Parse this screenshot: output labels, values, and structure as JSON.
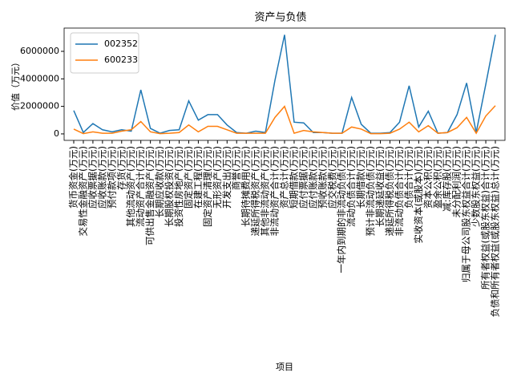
{
  "chart_data": {
    "type": "line",
    "title": "资产与负债",
    "xlabel": "项目",
    "ylabel": "价值（万元）",
    "categories": [
      "货币资金(万元)",
      "交易性金融资产(万元)",
      "应收票据(万元)",
      "应收账款(万元)",
      "预付款项(万元)",
      "存货(万元)",
      "其他流动资产(万元)",
      "流动资产合计(万元)",
      "可供出售金融资产(万元)",
      "长期应收款(万元)",
      "长期股权投资(万元)",
      "投资性房地产(万元)",
      "固定资产(万元)",
      "在建工程(万元)",
      "固定资产清理(万元)",
      "无形资产(万元)",
      "开发支出(万元)",
      "商誉(万元)",
      "长期待摊费用(万元)",
      "递延所得税资产(万元)",
      "其他非流动资产(万元)",
      "非流动资产合计(万元)",
      "资产总计(万元)",
      "短期借款(万元)",
      "应付票据(万元)",
      "应付账款(万元)",
      "预收账款(万元)",
      "应交税费(万元)",
      "一年内到期的非流动负债(万元)",
      "流动负债合计(万元)",
      "长期借款(万元)",
      "预计非流动负债(万元)",
      "长期递延收益(万元)",
      "递延所得税负债(万元)",
      "非流动负债合计(万元)",
      "负债合计(万元)",
      "实收资本(或股本)(万元)",
      "资本公积(万元)",
      "盈余公积(万元)",
      "减:库存股(万元)",
      "未分配利润(万元)",
      "归属于母公司股东权益合计(万元)",
      "少数股东权益(万元)",
      "所有者权益(或股东权益)合计(万元)",
      "负债和所有者权益(或股东权益)总计(万元)"
    ],
    "series": [
      {
        "name": "002352",
        "color": "#1f77b4",
        "values": [
          1700000,
          100000,
          750000,
          300000,
          150000,
          300000,
          200000,
          3200000,
          400000,
          50000,
          250000,
          300000,
          2400000,
          1000000,
          1400000,
          1400000,
          650000,
          100000,
          50000,
          200000,
          100000,
          3900000,
          7200000,
          850000,
          800000,
          100000,
          100000,
          50000,
          50000,
          2650000,
          700000,
          50000,
          50000,
          100000,
          850000,
          3500000,
          500000,
          1650000,
          50000,
          100000,
          1400000,
          3700000,
          100000,
          3600000,
          7200000
        ]
      },
      {
        "name": "600233",
        "color": "#ff7f0e",
        "values": [
          350000,
          20000,
          150000,
          50000,
          50000,
          200000,
          300000,
          900000,
          150000,
          20000,
          50000,
          100000,
          650000,
          150000,
          550000,
          550000,
          300000,
          50000,
          50000,
          50000,
          50000,
          1200000,
          2000000,
          50000,
          250000,
          150000,
          100000,
          50000,
          50000,
          500000,
          350000,
          20000,
          20000,
          50000,
          350000,
          850000,
          150000,
          600000,
          50000,
          100000,
          450000,
          1200000,
          50000,
          1300000,
          2050000
        ]
      }
    ],
    "ylim": [
      -470000,
      7690000
    ],
    "yticks": [
      0,
      2000000,
      4000000,
      6000000
    ],
    "legend": "upper left"
  }
}
